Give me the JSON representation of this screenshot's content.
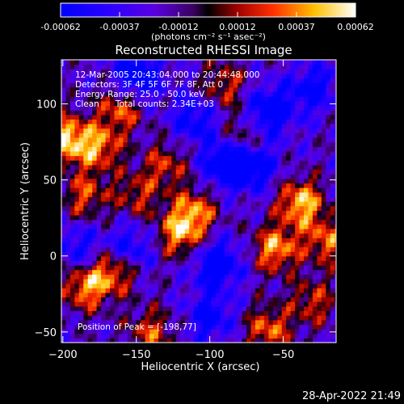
{
  "chart_data": {
    "type": "heatmap",
    "title": "Reconstructed RHESSI Image",
    "xlabel": "Heliocentric X (arcsec)",
    "ylabel": "Heliocentric Y (arcsec)",
    "xlim": [
      -201,
      -14
    ],
    "ylim": [
      -57,
      129
    ],
    "x_ticks": [
      -200,
      -150,
      -100,
      -50
    ],
    "x_tick_labels": [
      "−200",
      "−150",
      "−100",
      "−50"
    ],
    "y_ticks": [
      -50,
      0,
      50,
      100
    ],
    "y_tick_labels": [
      "−50",
      "0",
      "50",
      "100"
    ],
    "colorbar": {
      "tick_labels": [
        "-0.00062",
        "-0.00037",
        "-0.00012",
        "0.00012",
        "0.00037",
        "0.00062"
      ],
      "unit_label": "(photons cm⁻² s⁻¹ asec⁻²)",
      "range": [
        -0.00062,
        0.00062
      ]
    },
    "annotations": {
      "time_range": "12-Mar-2005 20:43:04.000 to 20:44:48.000",
      "detectors": "Detectors: 3F 4F 5F 6F 7F 8F, Att 0",
      "energy": "Energy Range: 25.0 - 50.0 keV",
      "method": "Clean      Total counts: 2.34E+03",
      "peak": "Position of Peak = [-198,77]"
    },
    "peak_position": [
      -198,
      77
    ],
    "hot_spots": [
      {
        "x": -198,
        "y": 77,
        "level": 1.0
      },
      {
        "x": -38,
        "y": 35,
        "level": 0.95
      },
      {
        "x": -55,
        "y": 5,
        "level": 0.85
      },
      {
        "x": -160,
        "y": 98,
        "level": 0.7
      },
      {
        "x": -175,
        "y": 72,
        "level": 0.75
      },
      {
        "x": -120,
        "y": 15,
        "level": 0.8
      },
      {
        "x": -110,
        "y": 30,
        "level": 0.7
      },
      {
        "x": -185,
        "y": -20,
        "level": 0.8
      },
      {
        "x": -165,
        "y": -10,
        "level": 0.75
      },
      {
        "x": -140,
        "y": -50,
        "level": 0.6
      },
      {
        "x": -60,
        "y": -48,
        "level": 0.7
      },
      {
        "x": -30,
        "y": -30,
        "level": 0.55
      },
      {
        "x": -20,
        "y": 10,
        "level": 0.7
      },
      {
        "x": -90,
        "y": 112,
        "level": 0.55
      },
      {
        "x": -75,
        "y": 80,
        "level": 0.5
      },
      {
        "x": -185,
        "y": 40,
        "level": 0.6
      },
      {
        "x": -130,
        "y": 60,
        "level": 0.55
      },
      {
        "x": -150,
        "y": 40,
        "level": 0.5
      }
    ],
    "cold_spots": [
      {
        "x": -150,
        "y": 118,
        "level": -0.9
      },
      {
        "x": -90,
        "y": 60,
        "level": -0.8
      },
      {
        "x": -60,
        "y": 95,
        "level": -0.9
      },
      {
        "x": -95,
        "y": -5,
        "level": -0.85
      },
      {
        "x": -70,
        "y": 60,
        "level": -0.75
      },
      {
        "x": -155,
        "y": 5,
        "level": -0.6
      },
      {
        "x": -100,
        "y": -40,
        "level": -0.6
      },
      {
        "x": -30,
        "y": 110,
        "level": -0.6
      },
      {
        "x": -110,
        "y": 90,
        "level": -0.6
      },
      {
        "x": -190,
        "y": 5,
        "level": -0.5
      }
    ]
  },
  "footer": {
    "timestamp": "28-Apr-2022 21:49"
  }
}
